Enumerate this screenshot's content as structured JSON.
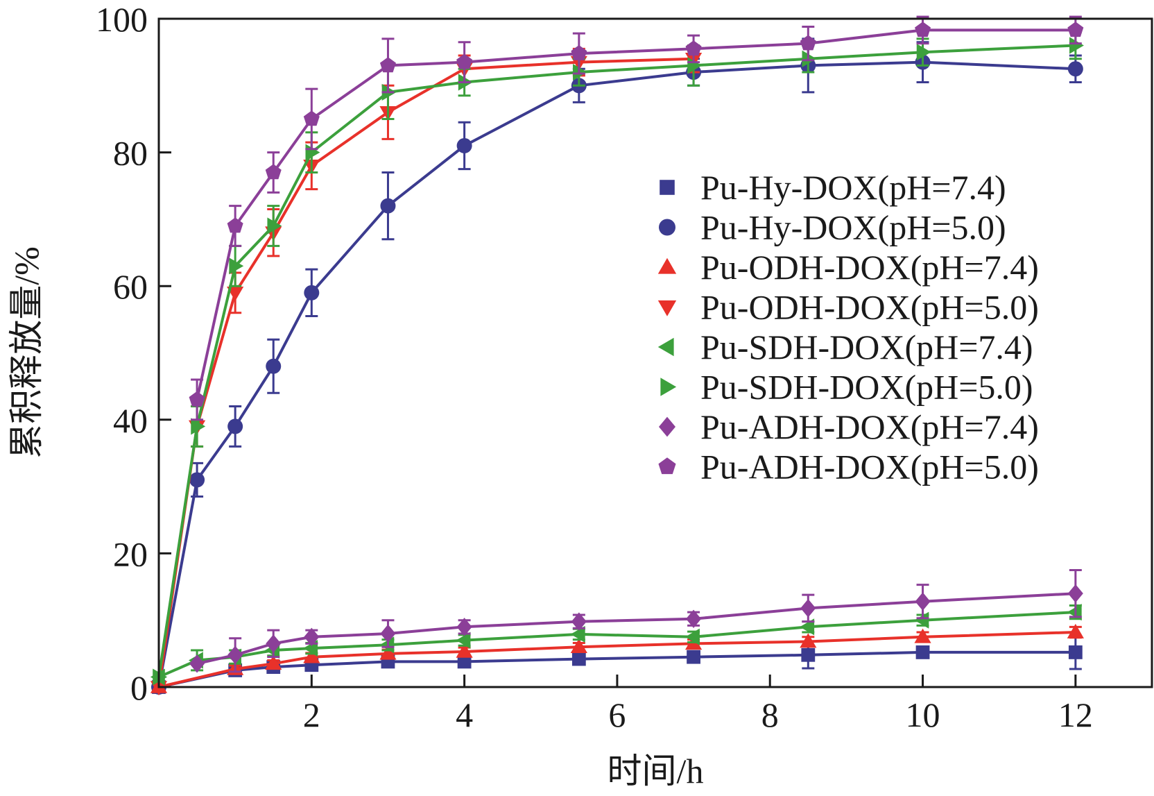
{
  "chart_data": {
    "type": "line",
    "title": "",
    "xlabel": "时间/h",
    "ylabel": "累积释放量/%",
    "xlim": [
      0,
      13
    ],
    "ylim": [
      0,
      100
    ],
    "xticks": [
      2,
      4,
      6,
      8,
      10,
      12
    ],
    "xtick_labels": [
      "2",
      "4",
      "6",
      "8",
      "10",
      "12"
    ],
    "yticks": [
      0,
      20,
      40,
      60,
      80,
      100
    ],
    "ytick_labels": [
      "0",
      "20",
      "40",
      "60",
      "80",
      "100"
    ],
    "grid": false,
    "legend_position": "center-right",
    "series": [
      {
        "name": "Pu-Hy-DOX(pH=7.4)",
        "color": "#3b3b8f",
        "marker": "square",
        "x": [
          0,
          1,
          1.5,
          2,
          3,
          4,
          5.5,
          7,
          8.5,
          10,
          12
        ],
        "y": [
          0,
          2.5,
          3,
          3.3,
          3.8,
          3.8,
          4.2,
          4.5,
          4.8,
          5.2,
          5.2
        ],
        "err": [
          0,
          0.5,
          0.5,
          0.5,
          0.6,
          0.6,
          0.6,
          0.6,
          2,
          0.8,
          2.5
        ]
      },
      {
        "name": "Pu-Hy-DOX(pH=5.0)",
        "color": "#3b3b8f",
        "marker": "circle",
        "x": [
          0,
          0.5,
          1,
          1.5,
          2,
          3,
          4,
          5.5,
          7,
          8.5,
          10,
          12
        ],
        "y": [
          0,
          31,
          39,
          48,
          59,
          72,
          81,
          90,
          92,
          93,
          93.5,
          92.5
        ],
        "err": [
          0,
          2.5,
          3,
          4,
          3.5,
          5,
          3.5,
          2.5,
          2,
          4,
          3,
          2
        ]
      },
      {
        "name": "Pu-ODH-DOX(pH=7.4)",
        "color": "#e8312a",
        "marker": "triangle-up",
        "x": [
          0,
          1,
          1.5,
          2,
          3,
          4,
          5.5,
          7,
          8.5,
          10,
          12
        ],
        "y": [
          0,
          2.7,
          3.5,
          4.5,
          5,
          5.3,
          6,
          6.5,
          6.8,
          7.5,
          8.2
        ],
        "err": [
          0,
          0.5,
          0.5,
          0.6,
          0.6,
          0.6,
          0.6,
          0.6,
          0.7,
          0.7,
          0.8
        ]
      },
      {
        "name": "Pu-ODH-DOX(pH=5.0)",
        "color": "#e8312a",
        "marker": "triangle-down",
        "x": [
          0,
          0.5,
          1,
          1.5,
          2,
          3,
          4,
          5.5,
          7
        ],
        "y": [
          0,
          39,
          59,
          68,
          78,
          86,
          92.5,
          93.5,
          94
        ],
        "err": [
          0,
          3,
          3,
          3.5,
          3.5,
          4,
          2,
          2,
          2
        ]
      },
      {
        "name": "Pu-SDH-DOX(pH=7.4)",
        "color": "#3ca03c",
        "marker": "triangle-left",
        "x": [
          0,
          0.5,
          1,
          1.5,
          2,
          3,
          4,
          5.5,
          7,
          8.5,
          10,
          12
        ],
        "y": [
          1.5,
          4,
          4.5,
          5.5,
          5.8,
          6.3,
          7,
          7.9,
          7.5,
          9,
          10,
          11.2
        ],
        "err": [
          0,
          1.5,
          1,
          0.8,
          0.8,
          0.8,
          0.8,
          0.8,
          0.8,
          0.8,
          0.8,
          1
        ]
      },
      {
        "name": "Pu-SDH-DOX(pH=5.0)",
        "color": "#3ca03c",
        "marker": "triangle-right",
        "x": [
          0,
          0.5,
          1,
          1.5,
          2,
          3,
          4,
          5.5,
          7,
          8.5,
          10,
          12
        ],
        "y": [
          1.5,
          39,
          63,
          69,
          80,
          89,
          90.5,
          92,
          93,
          94,
          95,
          96
        ],
        "err": [
          0,
          3,
          3,
          3,
          3,
          4,
          2,
          2,
          3,
          2,
          2,
          2
        ]
      },
      {
        "name": "Pu-ADH-DOX(pH=7.4)",
        "color": "#8b3f98",
        "marker": "diamond",
        "x": [
          0.5,
          1,
          1.5,
          2,
          3,
          4,
          5.5,
          7,
          8.5,
          10,
          12
        ],
        "y": [
          3.5,
          4.8,
          6.5,
          7.5,
          8,
          9,
          9.8,
          10.2,
          11.8,
          12.8,
          14
        ],
        "err": [
          0,
          2.5,
          2,
          1,
          2,
          1,
          1,
          1,
          2,
          2.5,
          3.5
        ]
      },
      {
        "name": "Pu-ADH-DOX(pH=5.0)",
        "color": "#8b3f98",
        "marker": "pentagon",
        "x": [
          0.5,
          1,
          1.5,
          2,
          3,
          4,
          5.5,
          7,
          8.5,
          10,
          12
        ],
        "y": [
          43,
          69,
          77,
          85,
          93,
          93.5,
          94.8,
          95.5,
          96.3,
          98.3,
          98.3
        ],
        "err": [
          3,
          3,
          3,
          4.5,
          4,
          3,
          3,
          2,
          2.5,
          2,
          2
        ]
      }
    ]
  }
}
